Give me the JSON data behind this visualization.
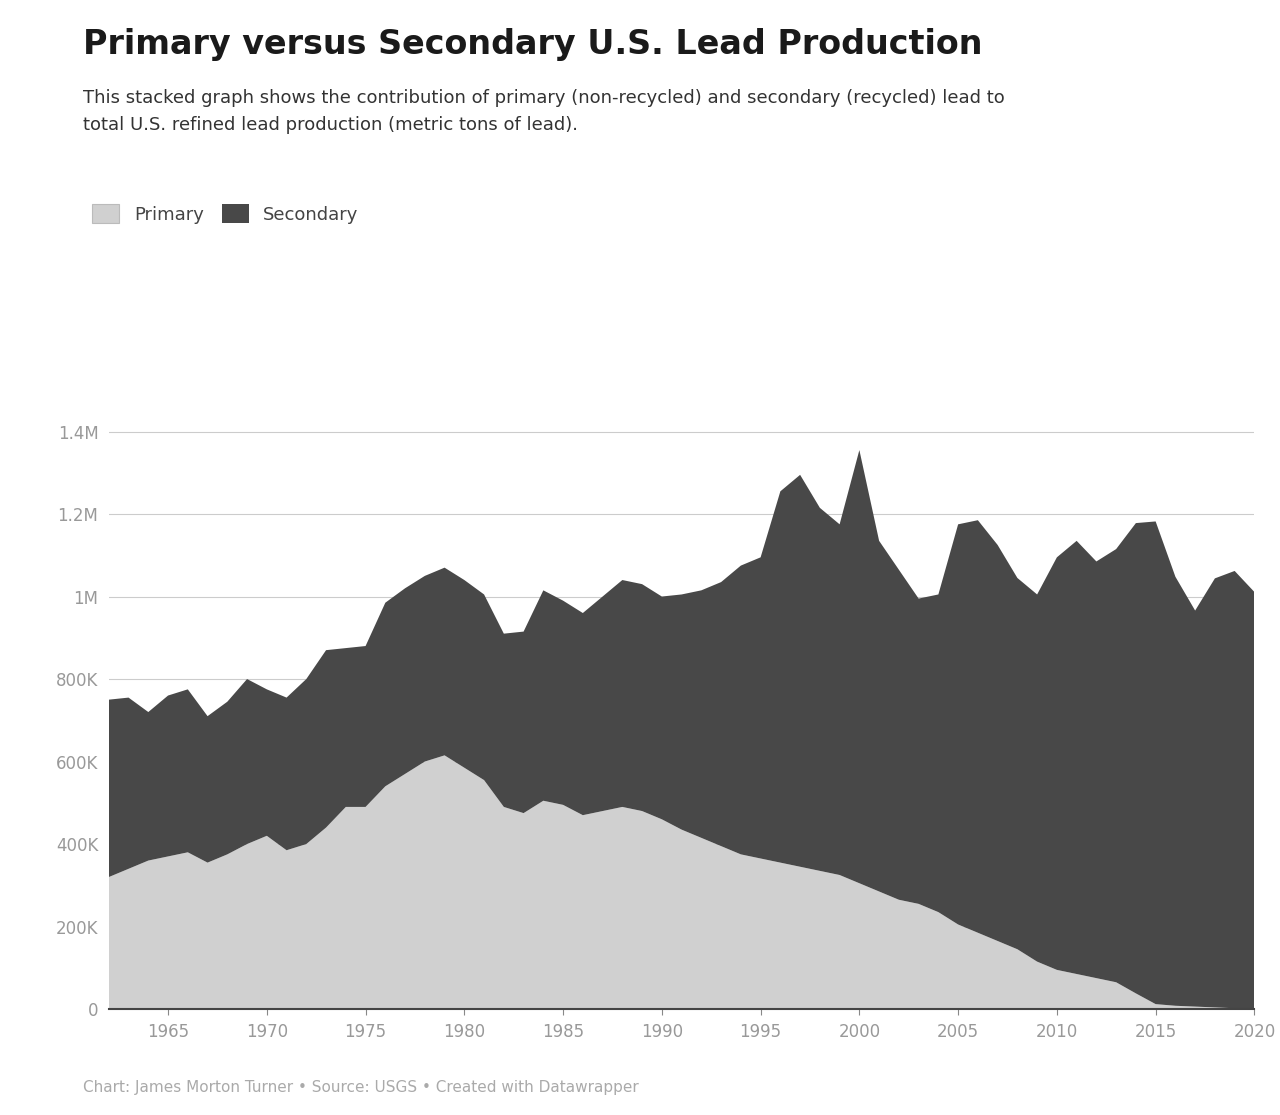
{
  "title": "Primary versus Secondary U.S. Lead Production",
  "subtitle": "This stacked graph shows the contribution of primary (non-recycled) and secondary (recycled) lead to\ntotal U.S. refined lead production (metric tons of lead).",
  "footer": "Chart: James Morton Turner • Source: USGS • Created with Datawrapper",
  "legend_primary": "Primary",
  "legend_secondary": "Secondary",
  "primary_color": "#d0d0d0",
  "secondary_color": "#484848",
  "background_color": "#ffffff",
  "years": [
    1962,
    1963,
    1964,
    1965,
    1966,
    1967,
    1968,
    1969,
    1970,
    1971,
    1972,
    1973,
    1974,
    1975,
    1976,
    1977,
    1978,
    1979,
    1980,
    1981,
    1982,
    1983,
    1984,
    1985,
    1986,
    1987,
    1988,
    1989,
    1990,
    1991,
    1992,
    1993,
    1994,
    1995,
    1996,
    1997,
    1998,
    1999,
    2000,
    2001,
    2002,
    2003,
    2004,
    2005,
    2006,
    2007,
    2008,
    2009,
    2010,
    2011,
    2012,
    2013,
    2014,
    2015,
    2016,
    2017,
    2018,
    2019,
    2020
  ],
  "primary": [
    320000,
    340000,
    360000,
    370000,
    380000,
    355000,
    375000,
    400000,
    420000,
    385000,
    400000,
    440000,
    490000,
    490000,
    540000,
    570000,
    600000,
    615000,
    585000,
    555000,
    490000,
    475000,
    505000,
    495000,
    470000,
    480000,
    490000,
    480000,
    460000,
    435000,
    415000,
    395000,
    375000,
    365000,
    355000,
    345000,
    335000,
    325000,
    305000,
    285000,
    265000,
    255000,
    235000,
    205000,
    185000,
    165000,
    145000,
    115000,
    95000,
    85000,
    75000,
    65000,
    38000,
    12000,
    8000,
    6000,
    4000,
    2000,
    1000
  ],
  "secondary": [
    430000,
    415000,
    360000,
    390000,
    395000,
    355000,
    370000,
    400000,
    355000,
    370000,
    400000,
    430000,
    385000,
    390000,
    445000,
    450000,
    450000,
    455000,
    455000,
    450000,
    420000,
    440000,
    510000,
    495000,
    490000,
    520000,
    550000,
    550000,
    540000,
    570000,
    600000,
    640000,
    700000,
    730000,
    900000,
    950000,
    880000,
    850000,
    1050000,
    850000,
    800000,
    740000,
    770000,
    970000,
    1000000,
    960000,
    900000,
    890000,
    1000000,
    1050000,
    1010000,
    1050000,
    1140000,
    1170000,
    1040000,
    960000,
    1040000,
    1060000,
    1010000
  ],
  "ylim": [
    0,
    1500000
  ],
  "yticks": [
    0,
    200000,
    400000,
    600000,
    800000,
    1000000,
    1200000,
    1400000
  ],
  "ytick_labels": [
    "0",
    "200K",
    "400K",
    "600K",
    "800K",
    "1M",
    "1.2M",
    "1.4M"
  ],
  "xlim": [
    1962,
    2020
  ],
  "xticks": [
    1965,
    1970,
    1975,
    1980,
    1985,
    1990,
    1995,
    2000,
    2005,
    2010,
    2015,
    2020
  ]
}
